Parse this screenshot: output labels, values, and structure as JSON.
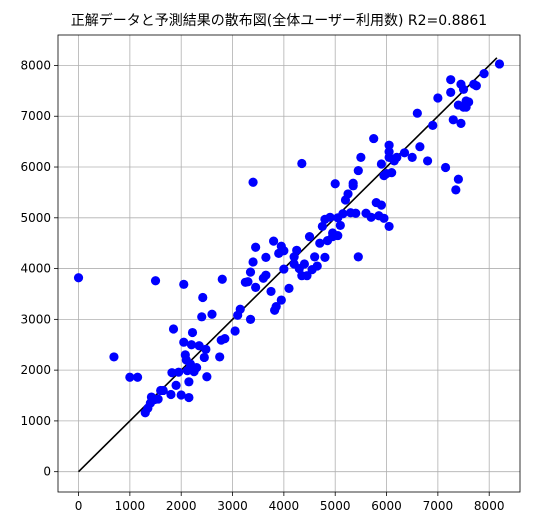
{
  "chart_data": {
    "type": "scatter",
    "title": "正解データと予測結果の散布図(全体ユーザー利用数)  R2=0.8861",
    "xlabel": "",
    "ylabel": "",
    "xlim": [
      -400,
      8600
    ],
    "ylim": [
      -400,
      8600
    ],
    "xticks": [
      0,
      1000,
      2000,
      3000,
      4000,
      5000,
      6000,
      7000,
      8000
    ],
    "yticks": [
      0,
      1000,
      2000,
      3000,
      4000,
      5000,
      6000,
      7000,
      8000
    ],
    "grid": true,
    "colors": {
      "points": "#0000ff",
      "line": "#000000"
    },
    "reference_line": {
      "x": [
        0,
        8150
      ],
      "y": [
        0,
        8150
      ]
    },
    "points": [
      [
        0,
        3820
      ],
      [
        690,
        2260
      ],
      [
        1000,
        1860
      ],
      [
        1150,
        1860
      ],
      [
        1300,
        1160
      ],
      [
        1350,
        1250
      ],
      [
        1400,
        1350
      ],
      [
        1420,
        1470
      ],
      [
        1480,
        1420
      ],
      [
        1500,
        3760
      ],
      [
        1550,
        1430
      ],
      [
        1600,
        1600
      ],
      [
        1650,
        1600
      ],
      [
        1800,
        1520
      ],
      [
        1820,
        1950
      ],
      [
        1850,
        2810
      ],
      [
        1900,
        1700
      ],
      [
        1950,
        1960
      ],
      [
        2000,
        1510
      ],
      [
        2050,
        2550
      ],
      [
        2050,
        3690
      ],
      [
        2080,
        2300
      ],
      [
        2100,
        2200
      ],
      [
        2120,
        1990
      ],
      [
        2150,
        1460
      ],
      [
        2150,
        1770
      ],
      [
        2180,
        2120
      ],
      [
        2200,
        2500
      ],
      [
        2220,
        2740
      ],
      [
        2250,
        1970
      ],
      [
        2300,
        2050
      ],
      [
        2350,
        2480
      ],
      [
        2400,
        3050
      ],
      [
        2420,
        3430
      ],
      [
        2450,
        2250
      ],
      [
        2480,
        2410
      ],
      [
        2500,
        1870
      ],
      [
        2600,
        3100
      ],
      [
        2750,
        2260
      ],
      [
        2780,
        2590
      ],
      [
        2800,
        3790
      ],
      [
        2850,
        2620
      ],
      [
        3050,
        2770
      ],
      [
        3100,
        3080
      ],
      [
        3150,
        3200
      ],
      [
        3250,
        3730
      ],
      [
        3300,
        3740
      ],
      [
        3350,
        3000
      ],
      [
        3350,
        3930
      ],
      [
        3400,
        4130
      ],
      [
        3400,
        5700
      ],
      [
        3450,
        3630
      ],
      [
        3450,
        4420
      ],
      [
        3600,
        3810
      ],
      [
        3650,
        3870
      ],
      [
        3650,
        4220
      ],
      [
        3750,
        3550
      ],
      [
        3800,
        4540
      ],
      [
        3820,
        3180
      ],
      [
        3850,
        3250
      ],
      [
        3900,
        4300
      ],
      [
        3950,
        3380
      ],
      [
        3950,
        4440
      ],
      [
        4000,
        3990
      ],
      [
        4000,
        4350
      ],
      [
        4100,
        3610
      ],
      [
        4200,
        4090
      ],
      [
        4200,
        4230
      ],
      [
        4250,
        4360
      ],
      [
        4300,
        4000
      ],
      [
        4350,
        6070
      ],
      [
        4350,
        3860
      ],
      [
        4400,
        4090
      ],
      [
        4450,
        3860
      ],
      [
        4500,
        4630
      ],
      [
        4550,
        3980
      ],
      [
        4600,
        4230
      ],
      [
        4650,
        4050
      ],
      [
        4700,
        4500
      ],
      [
        4750,
        4830
      ],
      [
        4800,
        4970
      ],
      [
        4800,
        4220
      ],
      [
        4850,
        4550
      ],
      [
        4900,
        5010
      ],
      [
        4950,
        4630
      ],
      [
        4950,
        4700
      ],
      [
        5000,
        5670
      ],
      [
        5050,
        5000
      ],
      [
        5050,
        4650
      ],
      [
        5100,
        4850
      ],
      [
        5150,
        5080
      ],
      [
        5200,
        5350
      ],
      [
        5250,
        5470
      ],
      [
        5300,
        5100
      ],
      [
        5350,
        5630
      ],
      [
        5350,
        5680
      ],
      [
        5400,
        5090
      ],
      [
        5450,
        4230
      ],
      [
        5450,
        5930
      ],
      [
        5500,
        6190
      ],
      [
        5600,
        5090
      ],
      [
        5700,
        5010
      ],
      [
        5750,
        6560
      ],
      [
        5800,
        5300
      ],
      [
        5850,
        5040
      ],
      [
        5900,
        5250
      ],
      [
        5900,
        6060
      ],
      [
        5950,
        4990
      ],
      [
        5950,
        5830
      ],
      [
        6000,
        5870
      ],
      [
        6050,
        6190
      ],
      [
        6050,
        6300
      ],
      [
        6050,
        6430
      ],
      [
        6050,
        4830
      ],
      [
        6100,
        5890
      ],
      [
        6150,
        6120
      ],
      [
        6200,
        6190
      ],
      [
        6350,
        6280
      ],
      [
        6500,
        6190
      ],
      [
        6600,
        7060
      ],
      [
        6650,
        6400
      ],
      [
        6800,
        6120
      ],
      [
        6900,
        6820
      ],
      [
        7000,
        7360
      ],
      [
        7150,
        5990
      ],
      [
        7250,
        7470
      ],
      [
        7250,
        7720
      ],
      [
        7300,
        6930
      ],
      [
        7350,
        5550
      ],
      [
        7400,
        7220
      ],
      [
        7400,
        5760
      ],
      [
        7450,
        7630
      ],
      [
        7450,
        6860
      ],
      [
        7500,
        7530
      ],
      [
        7500,
        7180
      ],
      [
        7550,
        7300
      ],
      [
        7550,
        7180
      ],
      [
        7600,
        7280
      ],
      [
        7700,
        7630
      ],
      [
        7750,
        7600
      ],
      [
        7900,
        7840
      ],
      [
        8200,
        8030
      ]
    ]
  }
}
